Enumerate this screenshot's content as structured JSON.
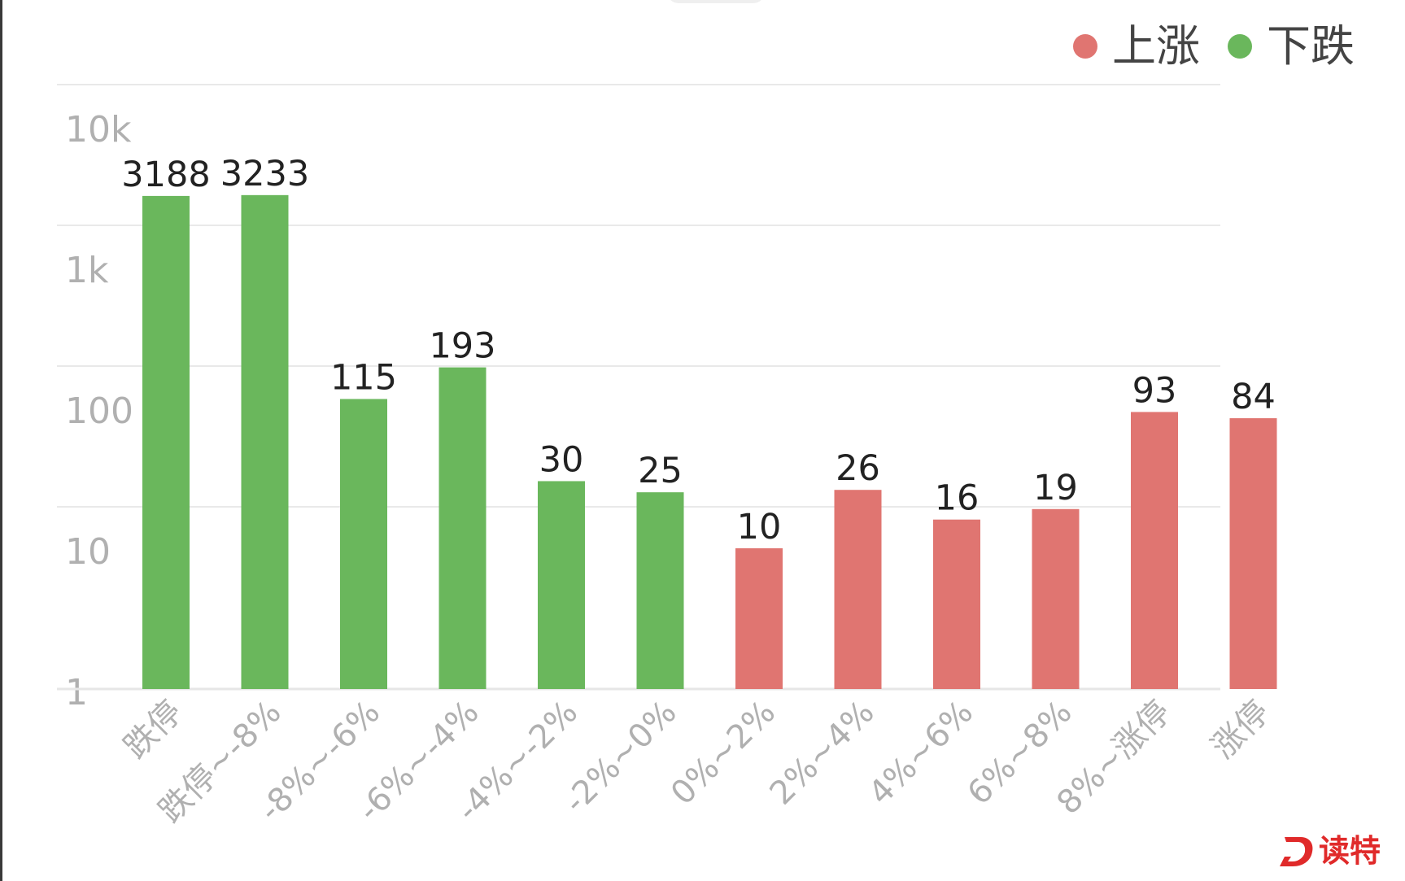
{
  "legend": {
    "up_label": "上涨",
    "down_label": "下跌",
    "up_color": "#e07571",
    "down_color": "#6ab75c"
  },
  "chart_data": {
    "type": "bar",
    "title": "",
    "xlabel": "",
    "ylabel": "",
    "yscale": "log",
    "ylim": [
      1,
      10000
    ],
    "yticks": [
      "1",
      "10",
      "100",
      "1k",
      "10k"
    ],
    "grid": true,
    "legend_position": "top-right",
    "categories": [
      "跌停",
      "跌停~-8%",
      "-8%~-6%",
      "-6%~-4%",
      "-4%~-2%",
      "-2%~0%",
      "0%~2%",
      "2%~4%",
      "4%~6%",
      "6%~8%",
      "8%~涨停",
      "涨停"
    ],
    "values": [
      3188,
      3233,
      115,
      193,
      30,
      25,
      10,
      26,
      16,
      19,
      93,
      84
    ],
    "series_by_bar": [
      "下跌",
      "下跌",
      "下跌",
      "下跌",
      "下跌",
      "下跌",
      "上涨",
      "上涨",
      "上涨",
      "上涨",
      "上涨",
      "上涨"
    ]
  },
  "watermark": {
    "text": "读特"
  }
}
